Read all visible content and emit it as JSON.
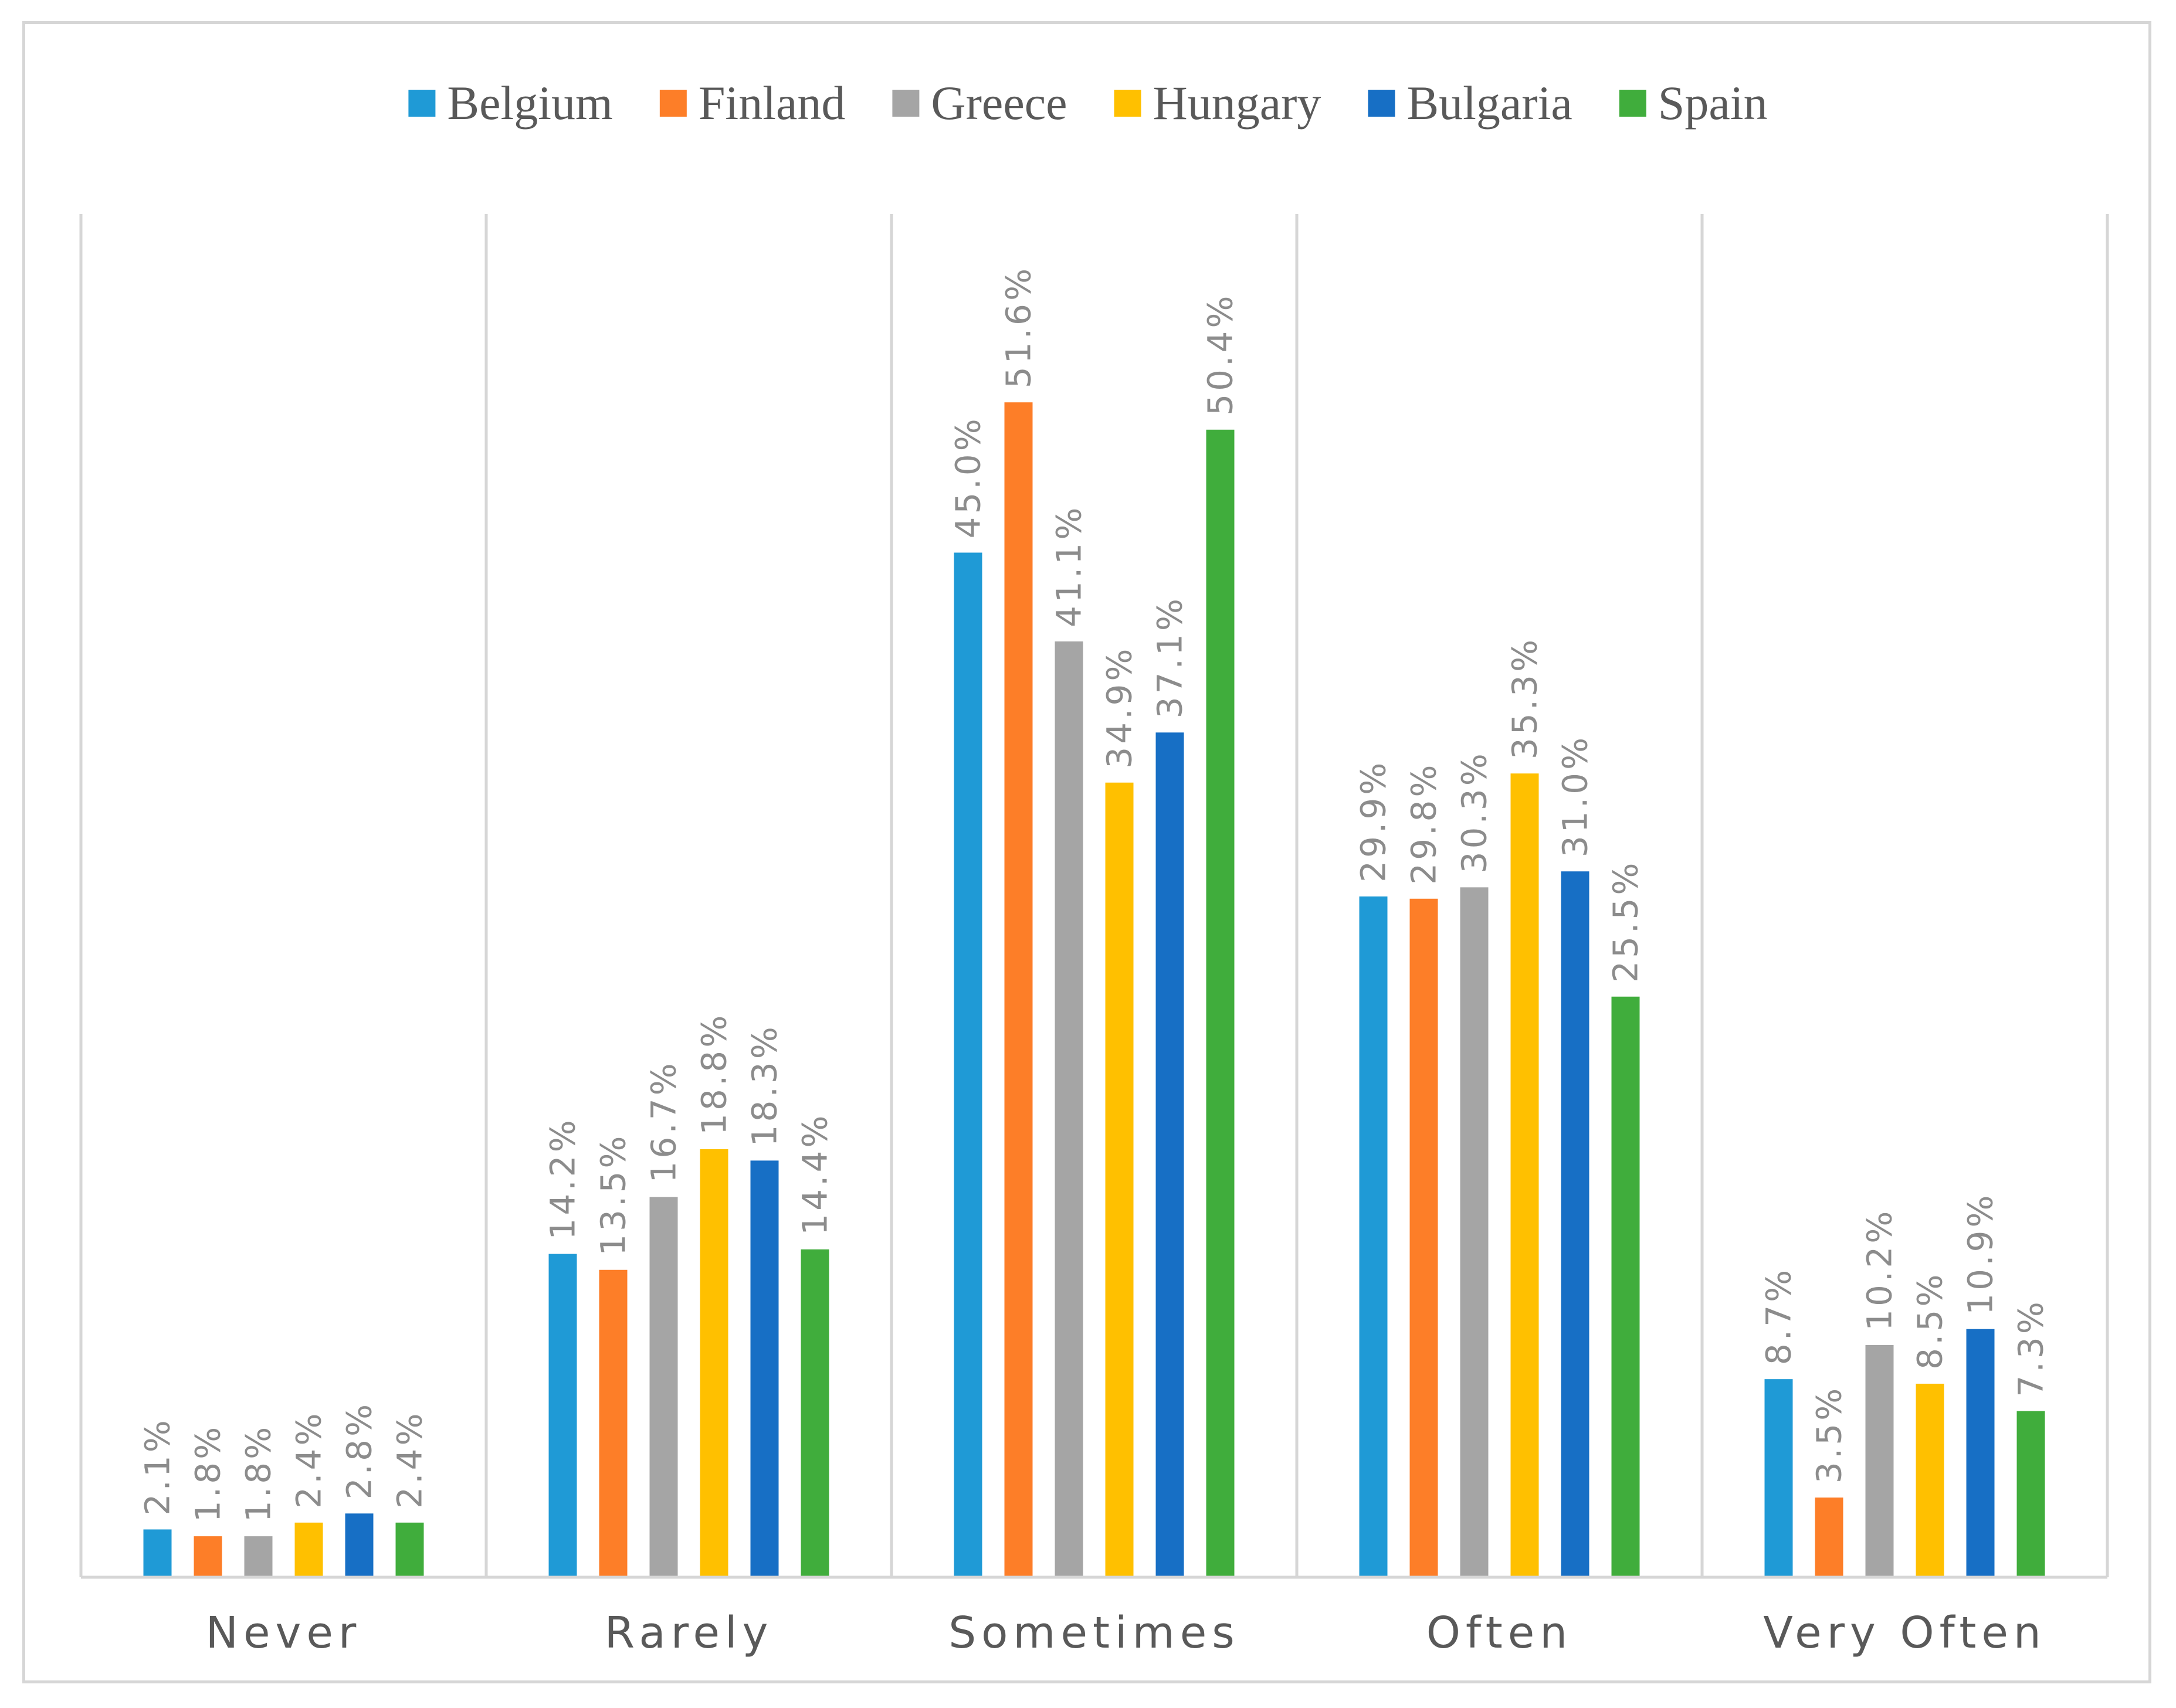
{
  "chart_data": {
    "type": "bar",
    "title": "",
    "xlabel": "",
    "ylabel": "",
    "ylim": [
      0,
      60
    ],
    "grid": false,
    "legend_position": "top",
    "categories": [
      "Never",
      "Rarely",
      "Sometimes",
      "Often",
      "Very Often"
    ],
    "series": [
      {
        "name": "Belgium",
        "color": "#1f9ad6",
        "values": [
          2.1,
          14.2,
          45.0,
          29.9,
          8.7
        ],
        "labels": [
          "2.1%",
          "14.2%",
          "45.0%",
          "29.9%",
          "8.7%"
        ]
      },
      {
        "name": "Finland",
        "color": "#fd7e28",
        "values": [
          1.8,
          13.5,
          51.6,
          29.8,
          3.5
        ],
        "labels": [
          "1.8%",
          "13.5%",
          "51.6%",
          "29.8%",
          "3.5%"
        ]
      },
      {
        "name": "Greece",
        "color": "#a5a5a5",
        "values": [
          1.8,
          16.7,
          41.1,
          30.3,
          10.2
        ],
        "labels": [
          "1.8%",
          "16.7%",
          "41.1%",
          "30.3%",
          "10.2%"
        ]
      },
      {
        "name": "Hungary",
        "color": "#ffc000",
        "values": [
          2.4,
          18.8,
          34.9,
          35.3,
          8.5
        ],
        "labels": [
          "2.4%",
          "18.8%",
          "34.9%",
          "35.3%",
          "8.5%"
        ]
      },
      {
        "name": "Bulgaria",
        "color": "#176fc5",
        "values": [
          2.8,
          18.3,
          37.1,
          31.0,
          10.9
        ],
        "labels": [
          "2.8%",
          "18.3%",
          "37.1%",
          "31.0%",
          "10.9%"
        ]
      },
      {
        "name": "Spain",
        "color": "#40ad3c",
        "values": [
          2.4,
          14.4,
          50.4,
          25.5,
          7.3
        ],
        "labels": [
          "2.4%",
          "14.4%",
          "50.4%",
          "25.5%",
          "7.3%"
        ]
      }
    ]
  }
}
